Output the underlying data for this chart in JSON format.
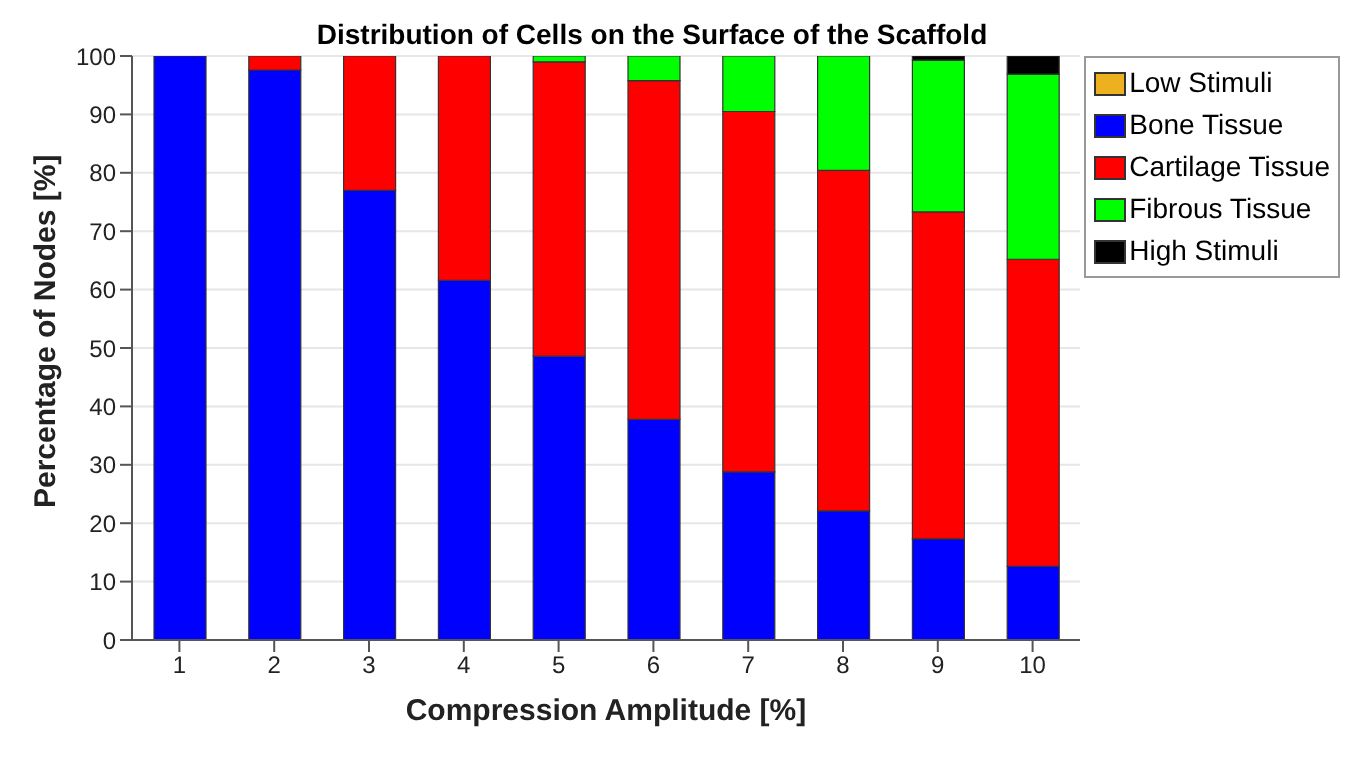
{
  "chart_data": {
    "type": "bar",
    "title": "Distribution of Cells on the Surface of the Scaffold",
    "xlabel": "Compression Amplitude [%]",
    "ylabel": "Percentage of Nodes [%]",
    "categories": [
      "1",
      "2",
      "3",
      "4",
      "5",
      "6",
      "7",
      "8",
      "9",
      "10"
    ],
    "stacked": true,
    "series": [
      {
        "name": "Low Stimuli",
        "color": "#edb120",
        "values": [
          0,
          0,
          0,
          0,
          0,
          0,
          0,
          0,
          0,
          0
        ]
      },
      {
        "name": "Bone Tissue",
        "color": "#0000ff",
        "values": [
          100,
          97.6,
          77,
          61.6,
          48.6,
          37.8,
          28.8,
          22.1,
          17.3,
          12.6
        ]
      },
      {
        "name": "Cartilage Tissue",
        "color": "#ff0000",
        "values": [
          0,
          2.4,
          23,
          38.4,
          50.4,
          58,
          61.7,
          58.3,
          56,
          52.6
        ]
      },
      {
        "name": "Fibrous Tissue",
        "color": "#00ff00",
        "values": [
          0,
          0,
          0,
          0,
          1,
          4.2,
          9.5,
          19.6,
          26,
          31.7
        ]
      },
      {
        "name": "High Stimuli",
        "color": "#000000",
        "values": [
          0,
          0,
          0,
          0,
          0,
          0,
          0,
          0,
          0.7,
          3.1
        ]
      }
    ],
    "ylim": [
      0,
      100
    ],
    "yticks": [
      0,
      10,
      20,
      30,
      40,
      50,
      60,
      70,
      80,
      90,
      100
    ],
    "grid": "y",
    "legend": "top right"
  }
}
